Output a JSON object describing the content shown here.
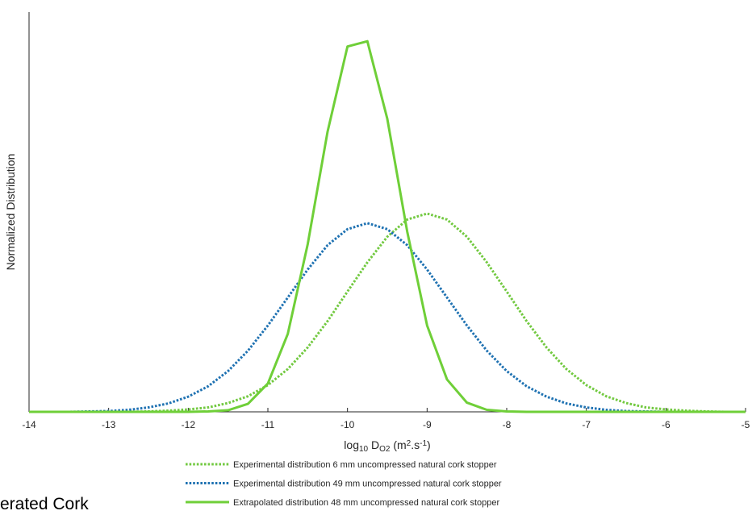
{
  "chart_data": {
    "type": "line",
    "xlabel": [
      "log",
      "10",
      " D",
      "O2",
      " (m",
      "2",
      ".s",
      "-1",
      ")"
    ],
    "ylabel": "Normalized Distribution",
    "x": [
      -14,
      -13.75,
      -13.5,
      -13.25,
      -13,
      -12.75,
      -12.5,
      -12.25,
      -12,
      -11.75,
      -11.5,
      -11.25,
      -11,
      -10.75,
      -10.5,
      -10.25,
      -10,
      -9.75,
      -9.5,
      -9.25,
      -9,
      -8.75,
      -8.5,
      -8.25,
      -8,
      -7.75,
      -7.5,
      -7.25,
      -7,
      -6.75,
      -6.5,
      -6.25,
      -6,
      -5.75,
      -5.5,
      -5.25,
      -5
    ],
    "series": [
      {
        "name": "Experimental distribution 6 mm uncompressed natural cork stopper",
        "color": "#72c940",
        "dash": "dotted",
        "values": [
          0,
          0,
          0,
          0,
          0,
          0,
          0.001,
          0.003,
          0.006,
          0.011,
          0.022,
          0.039,
          0.067,
          0.107,
          0.161,
          0.227,
          0.301,
          0.374,
          0.438,
          0.481,
          0.496,
          0.481,
          0.438,
          0.374,
          0.301,
          0.227,
          0.161,
          0.107,
          0.067,
          0.039,
          0.022,
          0.011,
          0.006,
          0.003,
          0.001,
          0,
          0
        ]
      },
      {
        "name": "Experimental distribution 49 mm uncompressed natural cork stopper",
        "color": "#1f72b2",
        "dash": "dotted",
        "values": [
          0,
          0,
          0,
          0.001,
          0.002,
          0.005,
          0.011,
          0.021,
          0.038,
          0.064,
          0.102,
          0.153,
          0.216,
          0.286,
          0.356,
          0.417,
          0.457,
          0.472,
          0.457,
          0.417,
          0.356,
          0.286,
          0.216,
          0.153,
          0.102,
          0.064,
          0.038,
          0.021,
          0.011,
          0.005,
          0.002,
          0.001,
          0,
          0,
          0,
          0,
          0
        ]
      },
      {
        "name": "Extrapolated distribution 48 mm uncompressed natural cork stopper",
        "color": "#6fcf38",
        "dash": "solid",
        "values": [
          0,
          0,
          0,
          0,
          0,
          0,
          0,
          0,
          0,
          0.001,
          0.004,
          0.02,
          0.071,
          0.195,
          0.419,
          0.701,
          0.914,
          0.927,
          0.733,
          0.451,
          0.216,
          0.081,
          0.023,
          0.005,
          0.001,
          0,
          0,
          0,
          0,
          0,
          0,
          0,
          0,
          0,
          0,
          0,
          0
        ]
      }
    ],
    "xlim": [
      -14,
      -5
    ],
    "xticks": [
      -14,
      -13,
      -12,
      -11,
      -10,
      -9,
      -8,
      -7,
      -6,
      -5
    ],
    "ylim": [
      0,
      1
    ],
    "yticks": [],
    "grid": false,
    "legend": "bottom",
    "footer_text": "erated Cork"
  }
}
